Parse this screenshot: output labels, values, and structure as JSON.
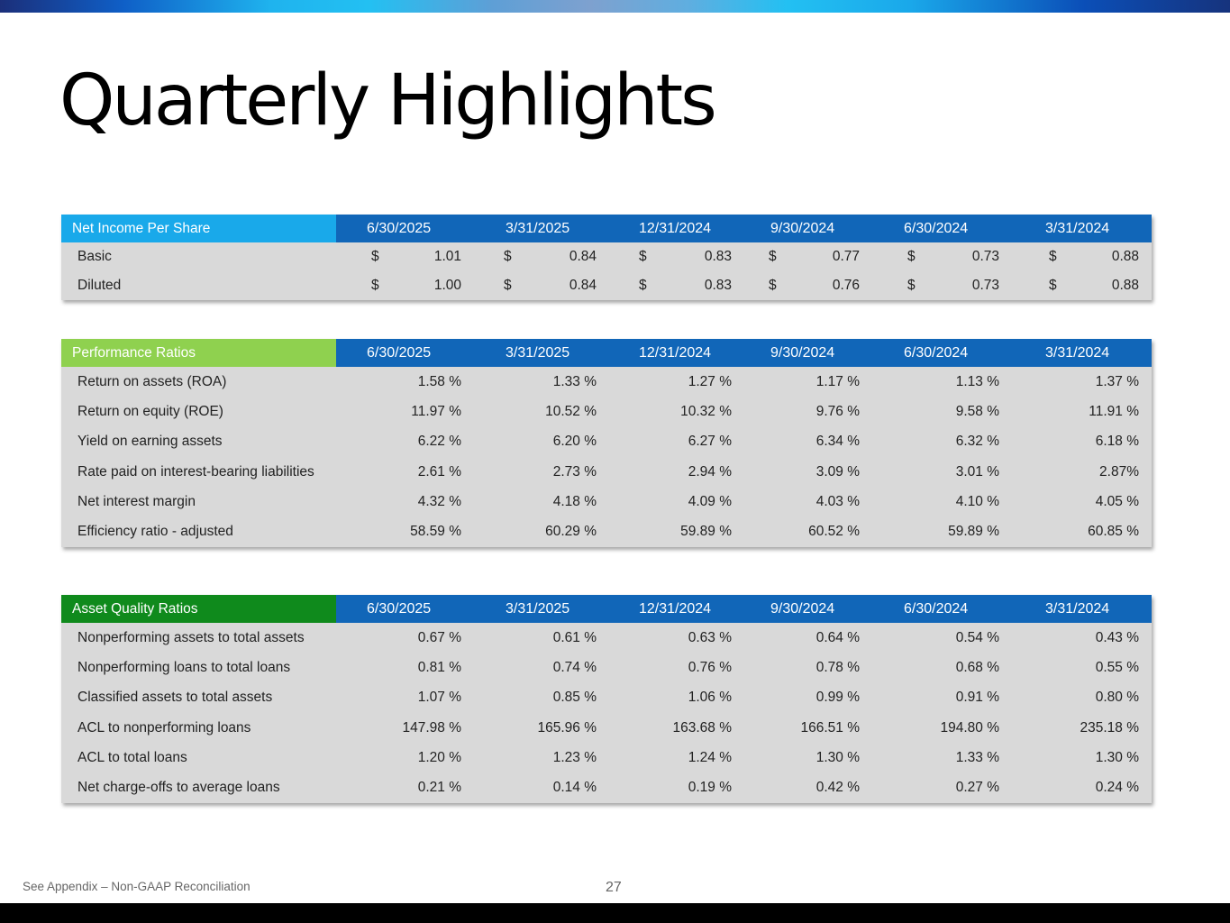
{
  "title": "Quarterly Highlights",
  "dates": [
    "6/30/2025",
    "3/31/2025",
    "12/31/2024",
    "9/30/2024",
    "6/30/2024",
    "3/31/2024"
  ],
  "colors": {
    "header_blue": "#1166b8",
    "net_income_label": "#19a9ea",
    "performance_label": "#8fd14f",
    "asset_quality_label": "#0f8a1c",
    "table_bg": "#d9d9d9"
  },
  "net_income": {
    "label": "Net Income Per Share",
    "currency": "$",
    "rows": [
      {
        "name": "Basic",
        "values": [
          "1.01",
          "0.84",
          "0.83",
          "0.77",
          "0.73",
          "0.88"
        ]
      },
      {
        "name": "Diluted",
        "values": [
          "1.00",
          "0.84",
          "0.83",
          "0.76",
          "0.73",
          "0.88"
        ]
      }
    ]
  },
  "performance": {
    "label": "Performance Ratios",
    "rows": [
      {
        "name": "Return on assets (ROA)",
        "values": [
          "1.58 %",
          "1.33 %",
          "1.27 %",
          "1.17 %",
          "1.13 %",
          "1.37 %"
        ]
      },
      {
        "name": "Return on equity (ROE)",
        "values": [
          "11.97 %",
          "10.52 %",
          "10.32 %",
          "9.76 %",
          "9.58 %",
          "11.91 %"
        ]
      },
      {
        "name": "Yield on earning assets",
        "values": [
          "6.22 %",
          "6.20 %",
          "6.27 %",
          "6.34 %",
          "6.32 %",
          "6.18 %"
        ]
      },
      {
        "name": "Rate paid on interest-bearing liabilities",
        "values": [
          "2.61 %",
          "2.73 %",
          "2.94 %",
          "3.09 %",
          "3.01 %",
          "2.87%"
        ]
      },
      {
        "name": "Net interest margin",
        "values": [
          "4.32 %",
          "4.18 %",
          "4.09 %",
          "4.03 %",
          "4.10 %",
          "4.05 %"
        ]
      },
      {
        "name": "Efficiency ratio - adjusted",
        "values": [
          "58.59 %",
          "60.29 %",
          "59.89 %",
          "60.52 %",
          "59.89 %",
          "60.85 %"
        ]
      }
    ]
  },
  "asset_quality": {
    "label": "Asset Quality Ratios",
    "rows": [
      {
        "name": "Nonperforming assets to total assets",
        "values": [
          "0.67 %",
          "0.61 %",
          "0.63 %",
          "0.64 %",
          "0.54 %",
          "0.43 %"
        ]
      },
      {
        "name": "Nonperforming loans to total loans",
        "values": [
          "0.81 %",
          "0.74 %",
          "0.76 %",
          "0.78 %",
          "0.68 %",
          "0.55 %"
        ]
      },
      {
        "name": "Classified assets to total assets",
        "values": [
          "1.07 %",
          "0.85 %",
          "1.06 %",
          "0.99 %",
          "0.91 %",
          "0.80 %"
        ]
      },
      {
        "name": "ACL to nonperforming loans",
        "values": [
          "147.98 %",
          "165.96 %",
          "163.68 %",
          "166.51 %",
          "194.80 %",
          "235.18 %"
        ]
      },
      {
        "name": "ACL to total loans",
        "values": [
          "1.20 %",
          "1.23 %",
          "1.24 %",
          "1.30 %",
          "1.33 %",
          "1.30 %"
        ]
      },
      {
        "name": "Net charge-offs to average loans",
        "values": [
          "0.21 %",
          "0.14 %",
          "0.19 %",
          "0.42 %",
          "0.27 %",
          "0.24 %"
        ]
      }
    ]
  },
  "footnote": "See Appendix – Non-GAAP Reconciliation",
  "page_number": "27"
}
